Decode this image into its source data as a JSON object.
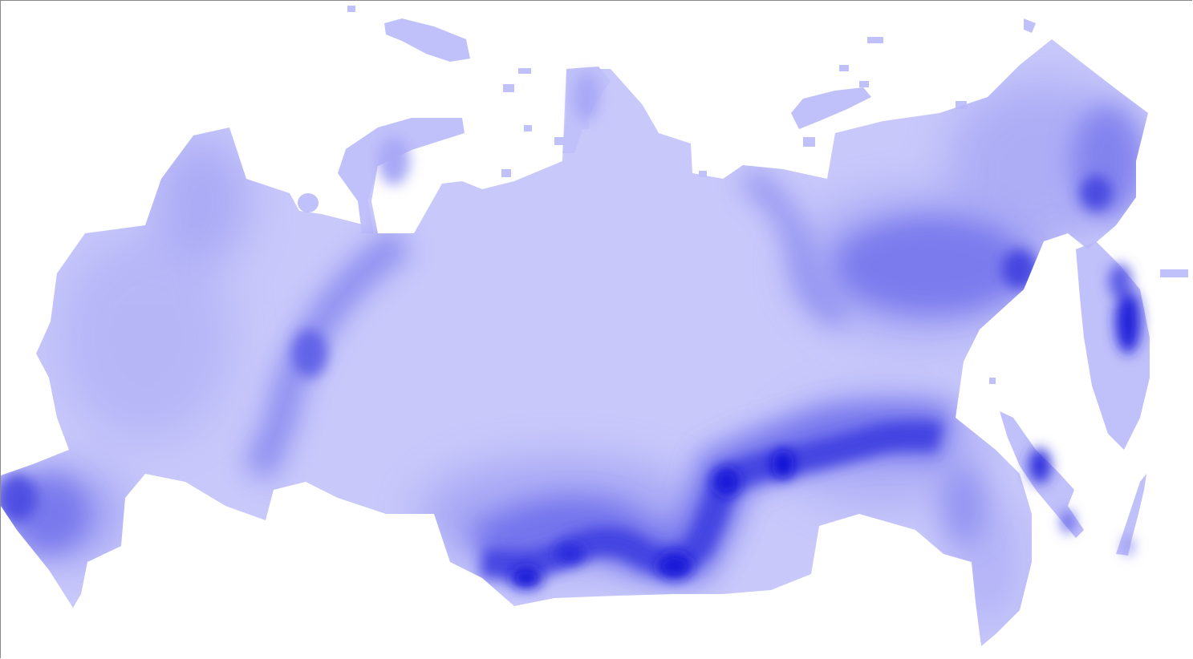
{
  "map": {
    "type": "density-heatmap",
    "region": "russia",
    "colors": {
      "background": "#ffffff",
      "land_base": "#c8c8fb",
      "density_low": "#a9a9f5",
      "density_mid": "#7676ec",
      "density_high": "#3b3be0",
      "density_peak": "#1010d6",
      "border": "#8a8a8a"
    }
  }
}
